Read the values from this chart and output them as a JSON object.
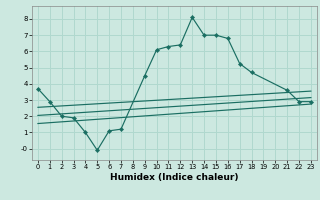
{
  "xlabel": "Humidex (Indice chaleur)",
  "xlim": [
    -0.5,
    23.5
  ],
  "ylim": [
    -0.7,
    8.8
  ],
  "xticks": [
    0,
    1,
    2,
    3,
    4,
    5,
    6,
    7,
    8,
    9,
    10,
    11,
    12,
    13,
    14,
    15,
    16,
    17,
    18,
    19,
    20,
    21,
    22,
    23
  ],
  "yticks": [
    0,
    1,
    2,
    3,
    4,
    5,
    6,
    7,
    8
  ],
  "ytick_labels": [
    "-0",
    "1",
    "2",
    "3",
    "4",
    "5",
    "6",
    "7",
    "8"
  ],
  "bg_color": "#cce8e0",
  "line_color": "#1a6e62",
  "grid_color": "#b0d8ce",
  "main_line": {
    "x": [
      0,
      1,
      2,
      3,
      4,
      5,
      6,
      7,
      9,
      10,
      11,
      12,
      13,
      14,
      15,
      16,
      17,
      18,
      21,
      22,
      23
    ],
    "y": [
      3.7,
      2.9,
      2.0,
      1.9,
      1.0,
      -0.1,
      1.1,
      1.2,
      4.5,
      6.1,
      6.3,
      6.4,
      8.1,
      7.0,
      7.0,
      6.8,
      5.25,
      4.7,
      3.6,
      2.9,
      2.9
    ]
  },
  "straight_lines": [
    {
      "x": [
        0,
        23
      ],
      "y": [
        1.55,
        2.75
      ]
    },
    {
      "x": [
        0,
        23
      ],
      "y": [
        2.05,
        3.15
      ]
    },
    {
      "x": [
        0,
        23
      ],
      "y": [
        2.55,
        3.55
      ]
    }
  ]
}
